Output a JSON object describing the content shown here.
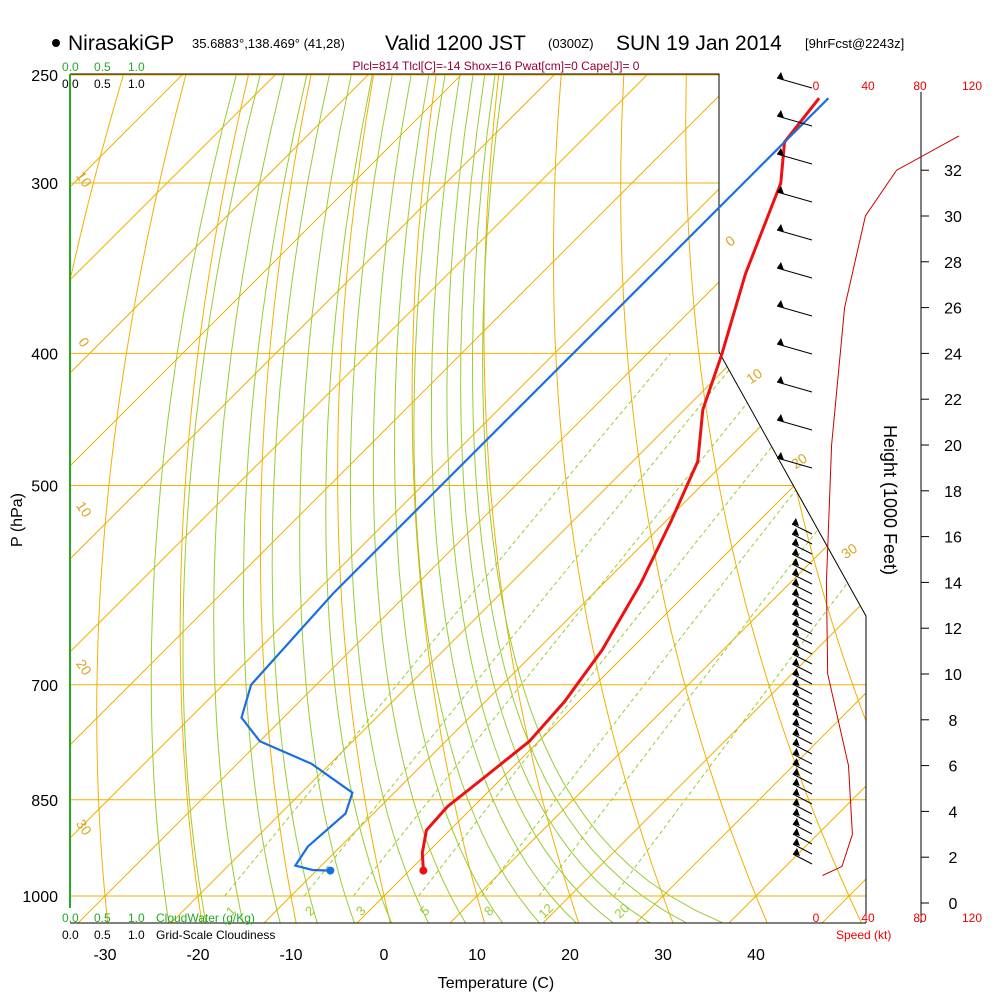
{
  "header": {
    "station": "NirasakiGP",
    "coords": "35.6883°,138.469° (41,28)",
    "valid_main": "Valid 1200 JST",
    "valid_z": "(0300Z)",
    "date": "SUN 19 Jan 2014",
    "forecast": "[9hrFcst@2243z]",
    "params": "Plcl=814 Tlcl[C]=-14 Shox=16 Pwat[cm]=0 Cape[J]= 0"
  },
  "colors": {
    "temperature": "#ee1111",
    "dewpoint": "#1a6fe0",
    "isobar": "#f0b000",
    "isotherm": "#f0b000",
    "dry_adiabat": "#99cc33",
    "moist_adiabat": "#99cc33",
    "mixing_ratio": "#99cc33",
    "cloudwater": "#22aa22",
    "wind_speed": "#cc0000"
  },
  "chart_data": {
    "type": "line",
    "ylabel": "P (hPa)",
    "xlabel": "Temperature (C)",
    "right_label": "Height (1000 Feet)",
    "pressure_ticks": [
      250,
      300,
      400,
      500,
      700,
      850,
      1000
    ],
    "temperature_ticks": [
      -30,
      -20,
      -10,
      0,
      10,
      20,
      30,
      40
    ],
    "height_ticks": [
      0,
      2,
      4,
      6,
      8,
      10,
      12,
      14,
      16,
      18,
      20,
      22,
      24,
      26,
      28,
      30,
      32
    ],
    "dry_adiabat_labels": [
      "10",
      "0",
      "10",
      "20",
      "30"
    ],
    "dry_adiabat_labels_right": [
      "0",
      "10",
      "20",
      "30"
    ],
    "mixing_ratio_labels": [
      "1",
      "2",
      "3",
      "5",
      "8",
      "12",
      "20"
    ],
    "cloudwater_axis": {
      "label": "CloudWater (g/Kg)",
      "ticks": [
        "0.0",
        "0.5",
        "1.0"
      ]
    },
    "cloudiness_axis": {
      "label": "Grid-Scale Cloudiness",
      "ticks": [
        "0.0",
        "0.5",
        "1.0"
      ]
    },
    "speed_axis": {
      "label": "Speed (kt)",
      "ticks": [
        "0",
        "40",
        "80",
        "120"
      ]
    },
    "series": [
      {
        "name": "temperature",
        "points": [
          [
            1.5,
            958
          ],
          [
            -0.5,
            930
          ],
          [
            -2.5,
            895
          ],
          [
            -2.8,
            860
          ],
          [
            -2.0,
            820
          ],
          [
            -1.0,
            770
          ],
          [
            -1.5,
            720
          ],
          [
            -3.0,
            660
          ],
          [
            -6.0,
            590
          ],
          [
            -9.5,
            530
          ],
          [
            -13.0,
            480
          ],
          [
            -18.0,
            440
          ],
          [
            -22.0,
            400
          ],
          [
            -28.0,
            350
          ],
          [
            -34.0,
            300
          ],
          [
            -38.0,
            280
          ],
          [
            -39.0,
            260
          ]
        ]
      },
      {
        "name": "dewpoint",
        "points": [
          [
            -8.5,
            958
          ],
          [
            -10.5,
            957
          ],
          [
            -12.8,
            950
          ],
          [
            -13.5,
            920
          ],
          [
            -13.0,
            870
          ],
          [
            -14.5,
            840
          ],
          [
            -22.0,
            800
          ],
          [
            -30.0,
            770
          ],
          [
            -34.5,
            740
          ],
          [
            -37.0,
            700
          ],
          [
            -38.0,
            600
          ],
          [
            -38.0,
            500
          ],
          [
            -38.0,
            400
          ],
          [
            -38.0,
            300
          ],
          [
            -38.0,
            260
          ]
        ]
      }
    ],
    "wind_speed_profile": [
      {
        "height_kft": 1.2,
        "speed_kt": 5
      },
      {
        "height_kft": 1.6,
        "speed_kt": 20
      },
      {
        "height_kft": 3,
        "speed_kt": 28
      },
      {
        "height_kft": 6,
        "speed_kt": 25
      },
      {
        "height_kft": 10,
        "speed_kt": 9
      },
      {
        "height_kft": 14,
        "speed_kt": 8
      },
      {
        "height_kft": 20,
        "speed_kt": 12
      },
      {
        "height_kft": 26,
        "speed_kt": 22
      },
      {
        "height_kft": 30,
        "speed_kt": 38
      },
      {
        "height_kft": 32,
        "speed_kt": 62
      },
      {
        "height_kft": 33.5,
        "speed_kt": 110
      }
    ],
    "cloudwater_line": {
      "value": 0
    },
    "grid": true
  }
}
